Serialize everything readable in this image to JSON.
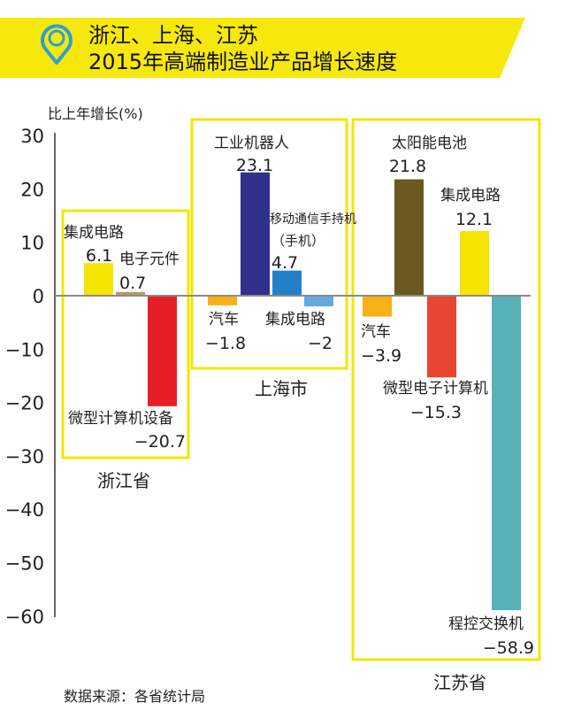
{
  "header": {
    "title_line1": "浙江、上海、江苏",
    "title_line2": "2015年高端制造业产品增长速度",
    "banner_color": "#f7e80b",
    "icon": "location-pin-icon",
    "icon_color": "#2b9fd9"
  },
  "chart_data": {
    "type": "bar",
    "title": "浙江、上海、江苏 2015年高端制造业产品增长速度",
    "ylabel": "比上年增长(%)",
    "xlabel": "",
    "ylim": [
      -60,
      30
    ],
    "yticks": [
      "30",
      "20",
      "10",
      "0",
      "-10",
      "-20",
      "-30",
      "-40",
      "-50",
      "-60"
    ],
    "ytick_values": [
      30,
      20,
      10,
      0,
      -10,
      -20,
      -30,
      -40,
      -50,
      -60
    ],
    "grid": false,
    "groups": [
      {
        "name": "浙江省",
        "bars": [
          {
            "label": "集成电路",
            "value": 6.1,
            "value_text": "6.1",
            "color": "#f5e400"
          },
          {
            "label": "电子元件",
            "value": 0.7,
            "value_text": "0.7",
            "color": "#b89a68"
          },
          {
            "label": "微型计算机设备",
            "value": -20.7,
            "value_text": "−20.7",
            "color": "#e61e26"
          }
        ]
      },
      {
        "name": "上海市",
        "bars": [
          {
            "label": "汽车",
            "value": -1.8,
            "value_text": "−1.8",
            "color": "#f7b016"
          },
          {
            "label": "工业机器人",
            "value": 23.1,
            "value_text": "23.1",
            "color": "#30318a"
          },
          {
            "label": "移动通信手持机",
            "label2": "（手机）",
            "value": 4.7,
            "value_text": "4.7",
            "color": "#2480c8"
          },
          {
            "label": "集成电路",
            "value": -2,
            "value_text": "−2",
            "color": "#63a9de"
          }
        ]
      },
      {
        "name": "江苏省",
        "bars": [
          {
            "label": "汽车",
            "value": -3.9,
            "value_text": "−3.9",
            "color": "#f7b016"
          },
          {
            "label": "太阳能电池",
            "value": 21.8,
            "value_text": "21.8",
            "color": "#6b5a1f"
          },
          {
            "label": "微型电子计算机",
            "value": -15.3,
            "value_text": "−15.3",
            "color": "#e84631"
          },
          {
            "label": "集成电路",
            "value": 12.1,
            "value_text": "12.1",
            "color": "#f5e400"
          },
          {
            "label": "程控交换机",
            "value": -58.9,
            "value_text": "−58.9",
            "color": "#56b0b9"
          }
        ]
      }
    ],
    "box_color": "#f5e400"
  },
  "footer": {
    "source": "数据来源：各省统计局"
  }
}
